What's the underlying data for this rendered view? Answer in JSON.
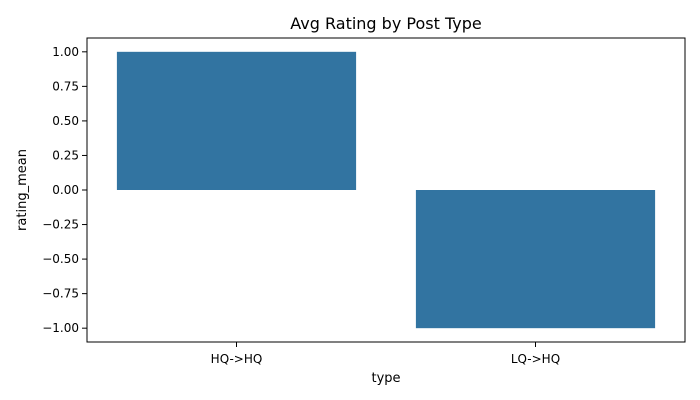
{
  "chart_data": {
    "type": "bar",
    "title": "Avg Rating by Post Type",
    "xlabel": "type",
    "ylabel": "rating_mean",
    "categories": [
      "HQ->HQ",
      "LQ->HQ"
    ],
    "values": [
      1.0,
      -1.0
    ],
    "ylim": [
      -1.1,
      1.1
    ],
    "yticks": [
      1.0,
      0.75,
      0.5,
      0.25,
      0.0,
      -0.25,
      -0.5,
      -0.75,
      -1.0
    ],
    "ytick_labels": [
      "1.00",
      "0.75",
      "0.50",
      "0.25",
      "0.00",
      "−0.25",
      "−0.50",
      "−0.75",
      "−1.00"
    ],
    "bar_color": "#3274a1",
    "grid": false,
    "legend": "none"
  }
}
